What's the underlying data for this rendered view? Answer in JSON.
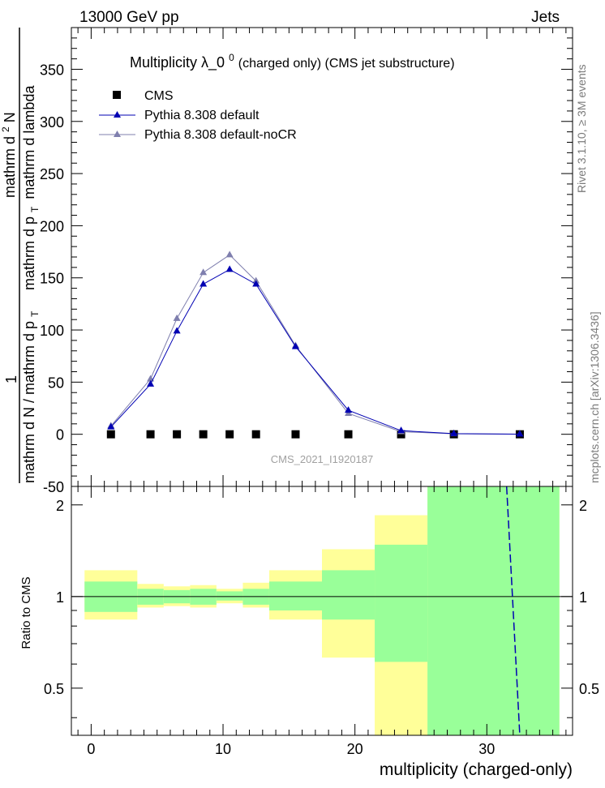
{
  "header": {
    "left": "13000 GeV pp",
    "right": "Jets"
  },
  "side_labels": {
    "rivet": "Rivet 3.1.10, ≥ 3M events",
    "mcplots": "mcplots.cern.ch [arXiv:1306.3436]"
  },
  "watermark": "CMS_2021_I1920187",
  "main": {
    "title_main": "Multiplicity  λ_0",
    "title_sup": "0",
    "title_rest": " (charged only) (CMS jet substructure)",
    "ylabel_top": "1",
    "ylabel_num": "mathrm d N / mathrm d p",
    "ylabel_num_sub": "T",
    "ylabel_den": "mathrm d",
    "ylabel_den_sup": "2",
    "ylabel_den_rest": "N",
    "ylabel_den2": "mathrm d p",
    "ylabel_den2_sub": "T",
    "ylabel_den3": "mathrm d lambda"
  },
  "ratio": {
    "ylabel": "Ratio to CMS"
  },
  "colors": {
    "cms": "#000000",
    "default": "#0000b3",
    "nocr": "#7f7fae",
    "band_inner": "#99ff99",
    "band_outer": "#ffff99"
  },
  "chart_data": {
    "type": "line",
    "xlabel": "multiplicity (charged-only)",
    "xlim": [
      -1.5,
      36.5
    ],
    "ylim": [
      -50,
      390
    ],
    "ratio_ylim": [
      0.35,
      2.3
    ],
    "x_ticks": [
      0,
      10,
      20,
      30
    ],
    "y_ticks": [
      -50,
      0,
      50,
      100,
      150,
      200,
      250,
      300,
      350
    ],
    "ratio_ticks": [
      0.5,
      1,
      2
    ],
    "legend": [
      "CMS",
      "Pythia 8.308 default",
      "Pythia 8.308 default-noCR"
    ],
    "legend_placement": "top-left",
    "series": [
      {
        "name": "CMS",
        "x": [
          1.5,
          4.5,
          6.5,
          8.5,
          10.5,
          12.5,
          15.5,
          19.5,
          23.5,
          27.5,
          32.5
        ],
        "y": [
          0,
          0,
          0,
          0,
          0,
          0,
          0,
          0,
          0,
          0,
          0
        ]
      },
      {
        "name": "Pythia 8.308 default",
        "x": [
          1.5,
          4.5,
          6.5,
          8.5,
          10.5,
          12.5,
          15.5,
          19.5,
          23.5,
          27.5,
          32.5
        ],
        "y": [
          7,
          48,
          99,
          144,
          158,
          144,
          84,
          23,
          3.5,
          0.6,
          0.1
        ]
      },
      {
        "name": "Pythia 8.308 default-noCR",
        "x": [
          1.5,
          4.5,
          6.5,
          8.5,
          10.5,
          12.5,
          15.5,
          19.5,
          23.5,
          27.5,
          32.5
        ],
        "y": [
          8,
          53,
          111,
          155,
          172,
          147,
          85,
          20,
          2.5,
          0.4,
          0.1
        ]
      }
    ],
    "ratio_bands": [
      {
        "x0": -0.5,
        "x1": 3.5,
        "inner": [
          0.89,
          1.12
        ],
        "outer": [
          0.84,
          1.22
        ]
      },
      {
        "x0": 3.5,
        "x1": 5.5,
        "inner": [
          0.94,
          1.06
        ],
        "outer": [
          0.92,
          1.1
        ]
      },
      {
        "x0": 5.5,
        "x1": 7.5,
        "inner": [
          0.95,
          1.05
        ],
        "outer": [
          0.93,
          1.08
        ]
      },
      {
        "x0": 7.5,
        "x1": 9.5,
        "inner": [
          0.94,
          1.06
        ],
        "outer": [
          0.92,
          1.09
        ]
      },
      {
        "x0": 9.5,
        "x1": 11.5,
        "inner": [
          0.97,
          1.04
        ],
        "outer": [
          0.95,
          1.06
        ]
      },
      {
        "x0": 11.5,
        "x1": 13.5,
        "inner": [
          0.94,
          1.06
        ],
        "outer": [
          0.92,
          1.11
        ]
      },
      {
        "x0": 13.5,
        "x1": 17.5,
        "inner": [
          0.9,
          1.12
        ],
        "outer": [
          0.84,
          1.22
        ]
      },
      {
        "x0": 17.5,
        "x1": 21.5,
        "inner": [
          0.84,
          1.22
        ],
        "outer": [
          0.63,
          1.43
        ]
      },
      {
        "x0": 21.5,
        "x1": 25.5,
        "inner": [
          0.61,
          1.48
        ],
        "outer": [
          0.35,
          1.85
        ]
      },
      {
        "x0": 25.5,
        "x1": 35.5,
        "inner": [
          0.35,
          2.3
        ],
        "outer": [
          0.35,
          2.3
        ]
      }
    ],
    "ratio_line": {
      "x": [
        31.5,
        32.5
      ],
      "y": [
        2.3,
        0.35
      ]
    }
  }
}
